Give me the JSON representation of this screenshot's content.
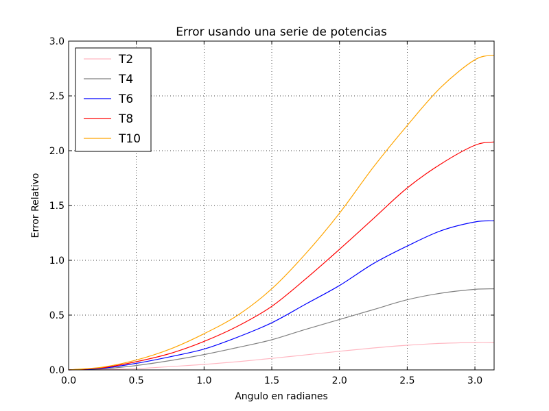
{
  "chart_data": {
    "type": "line",
    "title": "Error usando una serie de potencias",
    "xlabel": "Angulo en radianes",
    "ylabel": "Error Relativo",
    "xlim": [
      0,
      3.14159
    ],
    "ylim": [
      0,
      3.0
    ],
    "x_ticks": [
      "0.0",
      "0.5",
      "1.0",
      "1.5",
      "2.0",
      "2.5",
      "3.0"
    ],
    "y_ticks": [
      "0.0",
      "0.5",
      "1.0",
      "1.5",
      "2.0",
      "2.5",
      "3.0"
    ],
    "grid": true,
    "legend_position": "top-left",
    "x": [
      0,
      0.25,
      0.5,
      0.75,
      1.0,
      1.25,
      1.5,
      1.75,
      2.0,
      2.25,
      2.5,
      2.75,
      3.0,
      3.14
    ],
    "series": [
      {
        "name": "T2",
        "color": "#ffb6c1",
        "values": [
          0,
          0.003,
          0.012,
          0.03,
          0.05,
          0.075,
          0.105,
          0.137,
          0.17,
          0.2,
          0.225,
          0.242,
          0.25,
          0.25
        ]
      },
      {
        "name": "T4",
        "color": "#808080",
        "values": [
          0,
          0.01,
          0.04,
          0.085,
          0.14,
          0.205,
          0.275,
          0.37,
          0.46,
          0.55,
          0.64,
          0.7,
          0.735,
          0.74
        ]
      },
      {
        "name": "T6",
        "color": "#0000ff",
        "values": [
          0,
          0.015,
          0.06,
          0.12,
          0.19,
          0.3,
          0.43,
          0.6,
          0.77,
          0.97,
          1.13,
          1.27,
          1.35,
          1.36
        ]
      },
      {
        "name": "T8",
        "color": "#ff0000",
        "values": [
          0,
          0.02,
          0.075,
          0.15,
          0.26,
          0.4,
          0.58,
          0.83,
          1.1,
          1.38,
          1.66,
          1.88,
          2.05,
          2.08
        ]
      },
      {
        "name": "T10",
        "color": "#ffa500",
        "values": [
          0,
          0.025,
          0.09,
          0.19,
          0.33,
          0.5,
          0.74,
          1.06,
          1.43,
          1.85,
          2.23,
          2.58,
          2.83,
          2.87
        ]
      }
    ]
  }
}
